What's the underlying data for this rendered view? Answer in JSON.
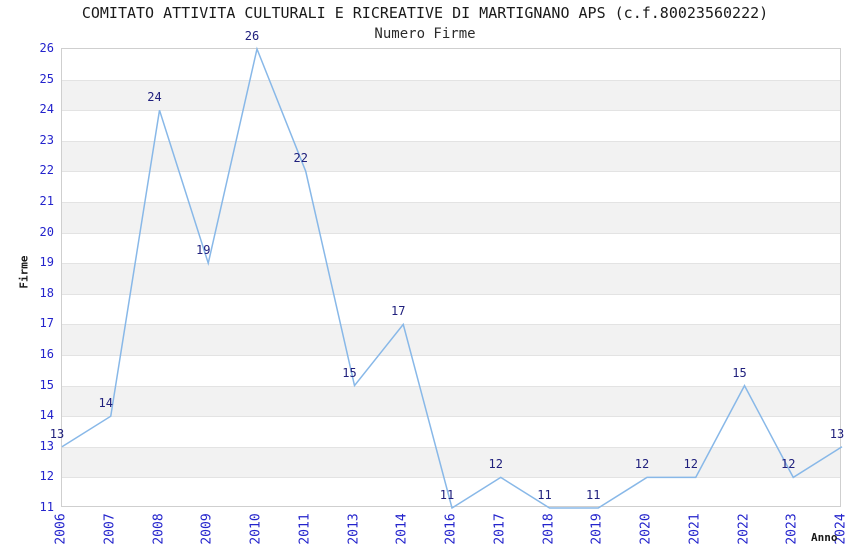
{
  "chart_data": {
    "type": "line",
    "title": "COMITATO ATTIVITA CULTURALI E RICREATIVE DI MARTIGNANO APS (c.f.80023560222)",
    "subtitle": "Numero Firme",
    "xlabel": "Anno",
    "ylabel": "Firme",
    "categories": [
      "2006",
      "2007",
      "2008",
      "2009",
      "2010",
      "2011",
      "2013",
      "2014",
      "2016",
      "2017",
      "2018",
      "2019",
      "2020",
      "2021",
      "2022",
      "2023",
      "2024"
    ],
    "values": [
      13,
      14,
      24,
      19,
      26,
      22,
      15,
      17,
      11,
      12,
      11,
      11,
      12,
      12,
      15,
      12,
      13
    ],
    "ylim": [
      11,
      26
    ],
    "y_tick_step": 1,
    "grid": "horizontal alternating bands with integer gridlines",
    "legend_position": "none",
    "data_labels_visible": true,
    "colors": {
      "line": "#88b8e8",
      "data_label": "#20207d",
      "tick_label": "#2323cc",
      "band": "#f2f2f2",
      "gridline": "#e3e3e3",
      "plot_border": "#cfcfcf",
      "text": "#1a1a1a",
      "background": "#ffffff"
    }
  }
}
